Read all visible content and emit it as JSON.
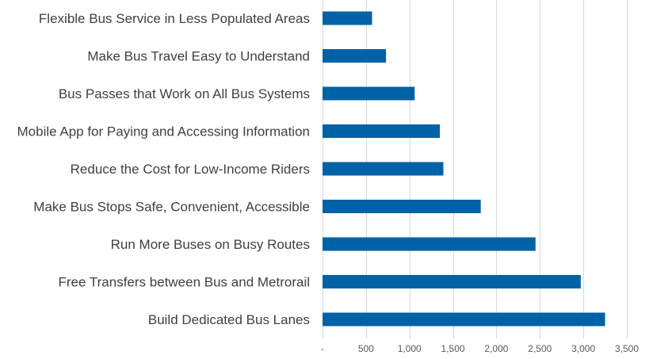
{
  "chart_data": {
    "type": "bar",
    "orientation": "horizontal",
    "title": "",
    "xlabel": "",
    "ylabel": "",
    "categories": [
      "Flexible Bus Service in Less Populated Areas",
      "Make Bus Travel Easy to Understand",
      "Bus Passes that Work on All Bus Systems",
      "Mobile App for Paying and Accessing Information",
      "Reduce the Cost for Low-Income Riders",
      "Make Bus Stops Safe, Convenient, Accessible",
      "Run More Buses on Busy Routes",
      "Free Transfers between Bus and Metrorail",
      "Build Dedicated Bus Lanes"
    ],
    "values": [
      570,
      730,
      1060,
      1350,
      1390,
      1820,
      2450,
      2970,
      3250
    ],
    "xlim": [
      0,
      3500
    ],
    "ticks": [
      0,
      500,
      1000,
      1500,
      2000,
      2500,
      3000,
      3500
    ],
    "tick_labels": [
      "-",
      "500",
      "1,000",
      "1,500",
      "2,000",
      "2,500",
      "3,000",
      "3,500"
    ],
    "bar_color": "#0062A6",
    "grid": true
  }
}
